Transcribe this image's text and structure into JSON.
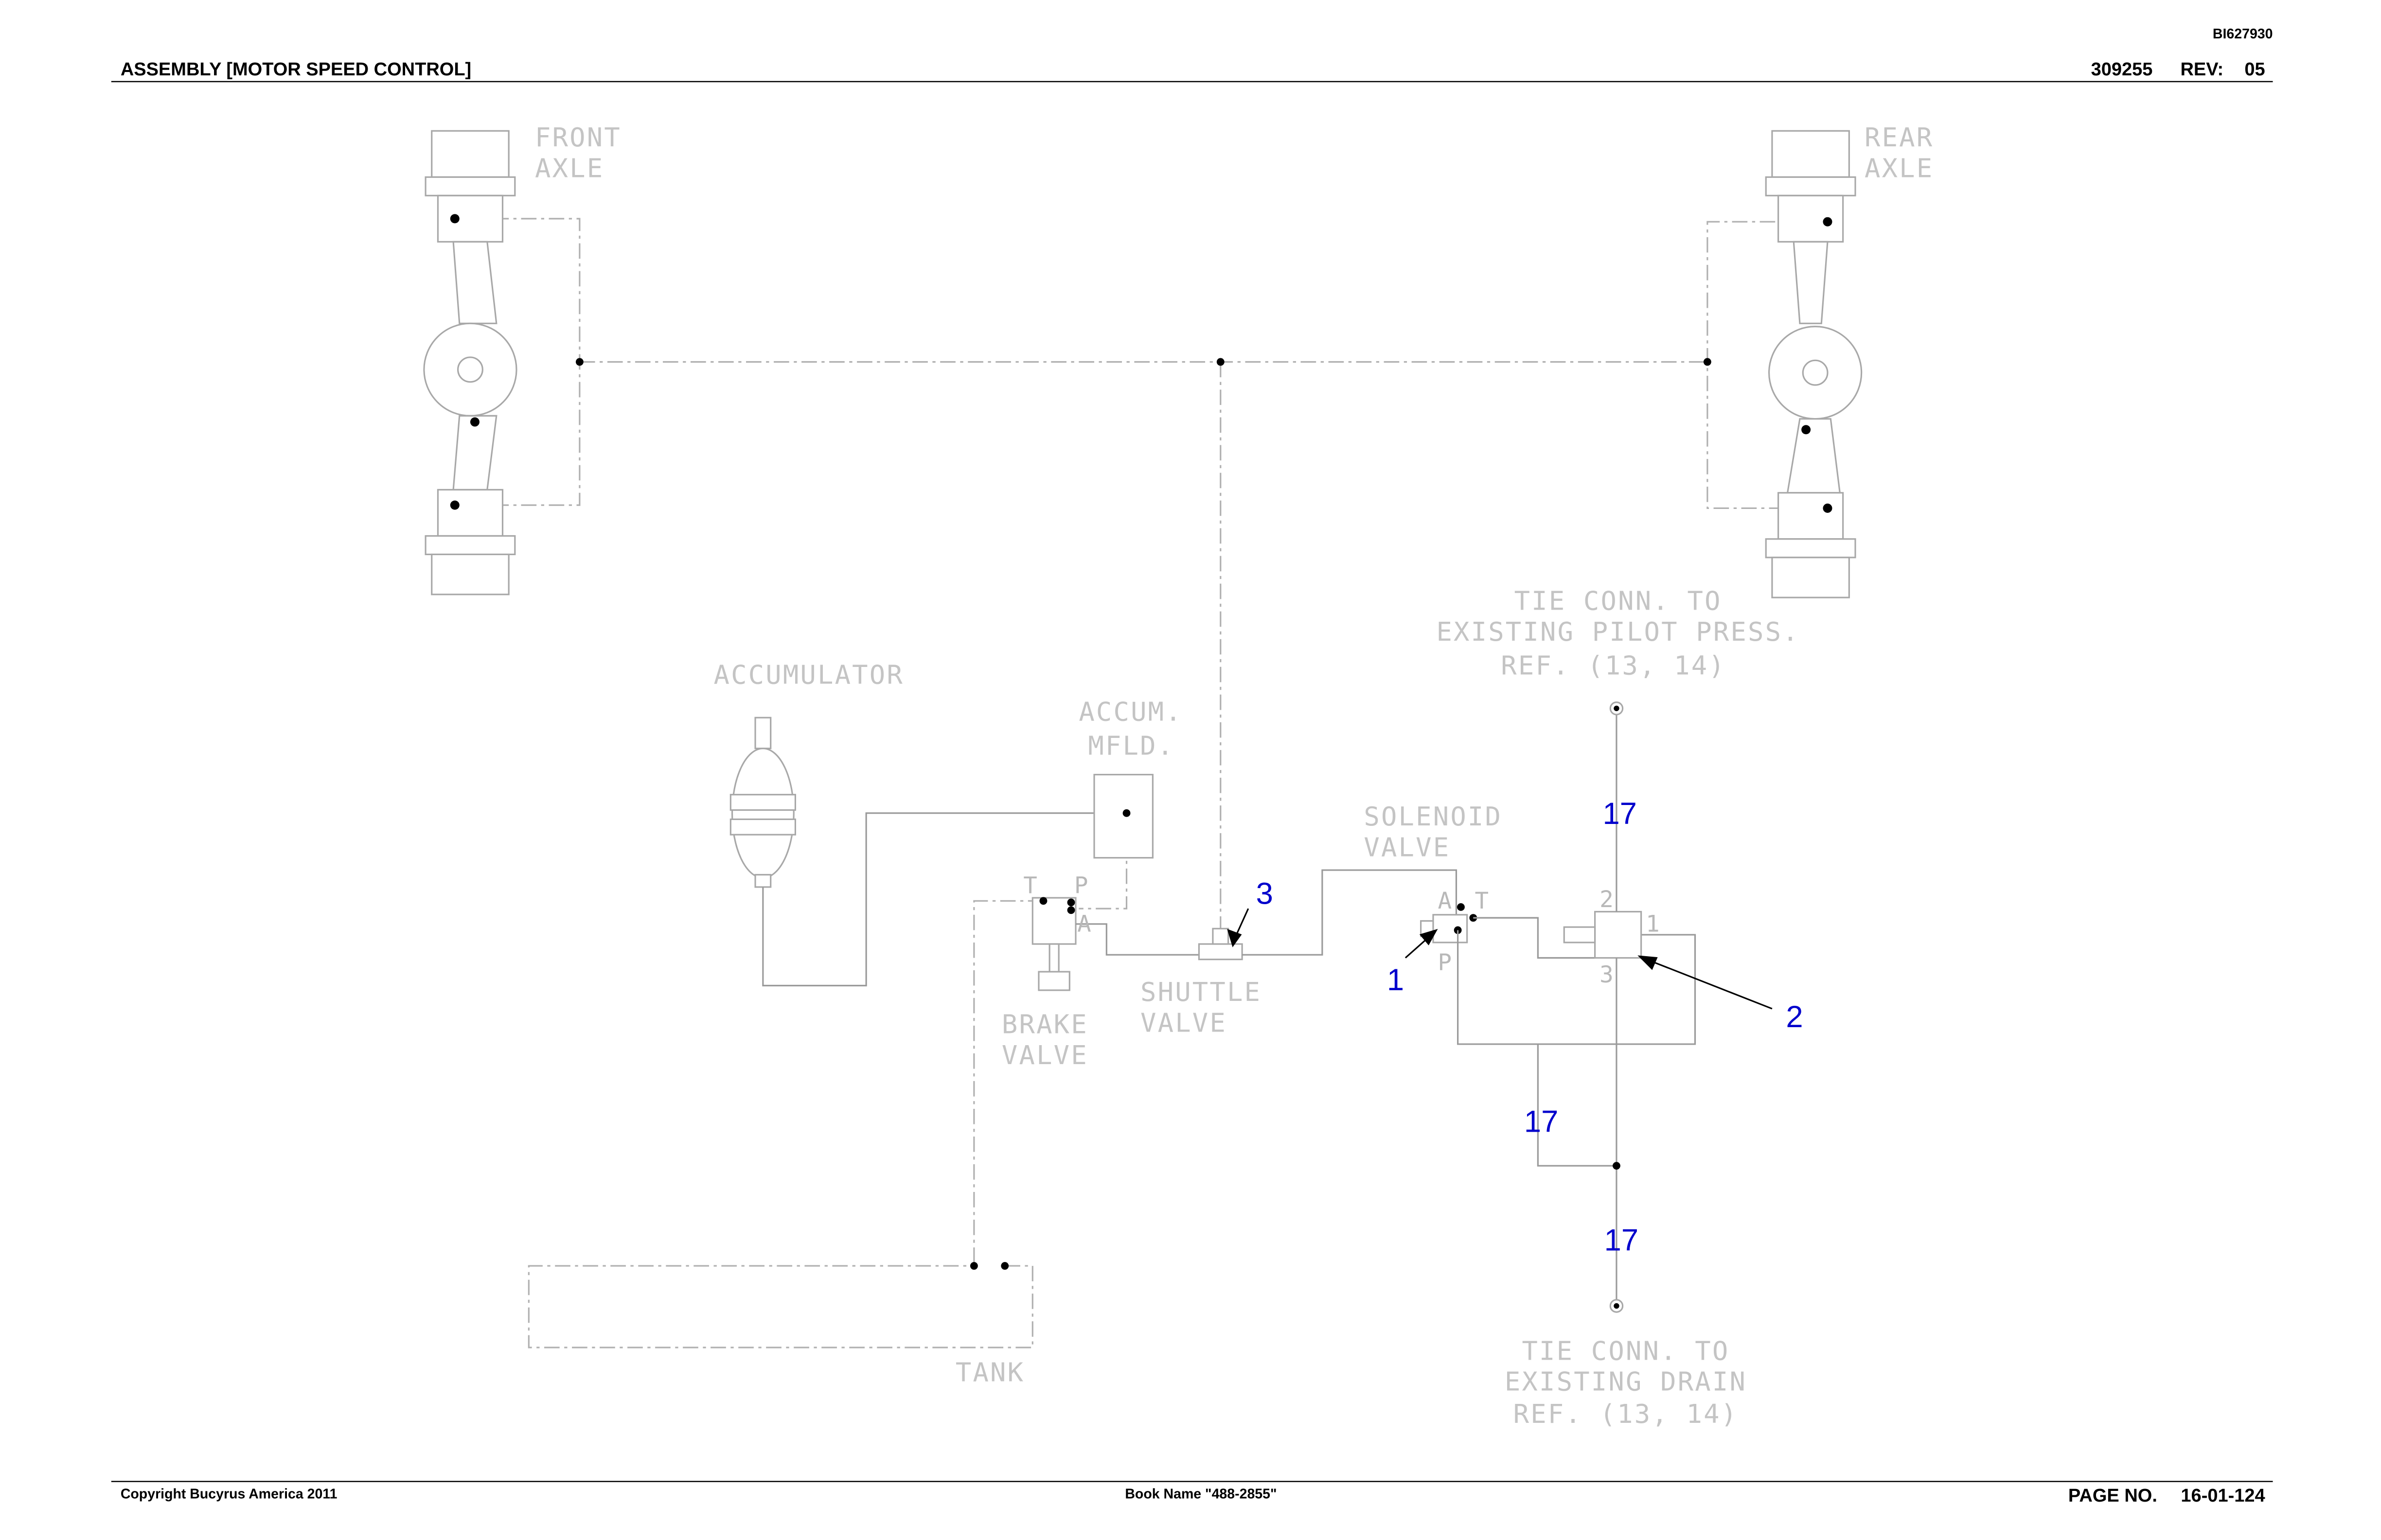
{
  "header": {
    "doc_id": "BI627930",
    "title": "ASSEMBLY [MOTOR SPEED CONTROL]",
    "part_number": "309255",
    "rev_label": "REV:",
    "rev": "05"
  },
  "labels": [
    {
      "lines": [
        "FRONT",
        "AXLE"
      ]
    },
    {
      "lines": [
        "REAR",
        "AXLE"
      ]
    },
    {
      "lines": [
        "ACCUMULATOR"
      ]
    },
    {
      "lines": [
        "ACCUM.",
        "MFLD."
      ]
    },
    {
      "lines": [
        "TIE CONN. TO",
        "EXISTING PILOT PRESS.",
        "REF. (13, 14)"
      ]
    },
    {
      "lines": [
        "SOLENOID",
        "VALVE"
      ]
    },
    {
      "lines": [
        "SHUTTLE",
        "VALVE"
      ]
    },
    {
      "lines": [
        "BRAKE",
        "VALVE"
      ]
    },
    {
      "lines": [
        "TANK"
      ]
    },
    {
      "lines": [
        "TIE CONN. TO",
        "EXISTING DRAIN",
        "REF. (13, 14)"
      ]
    }
  ],
  "ports": [
    "T",
    "P",
    "A",
    "A",
    "T",
    "P",
    "2",
    "1",
    "3"
  ],
  "callouts": [
    "17",
    "3",
    "1",
    "2",
    "17",
    "17"
  ],
  "footer": {
    "copyright": "Copyright Bucyrus America 2011",
    "book": "Book Name \"488-2855\"",
    "page_label": "PAGE NO.",
    "page": "16-01-124"
  }
}
